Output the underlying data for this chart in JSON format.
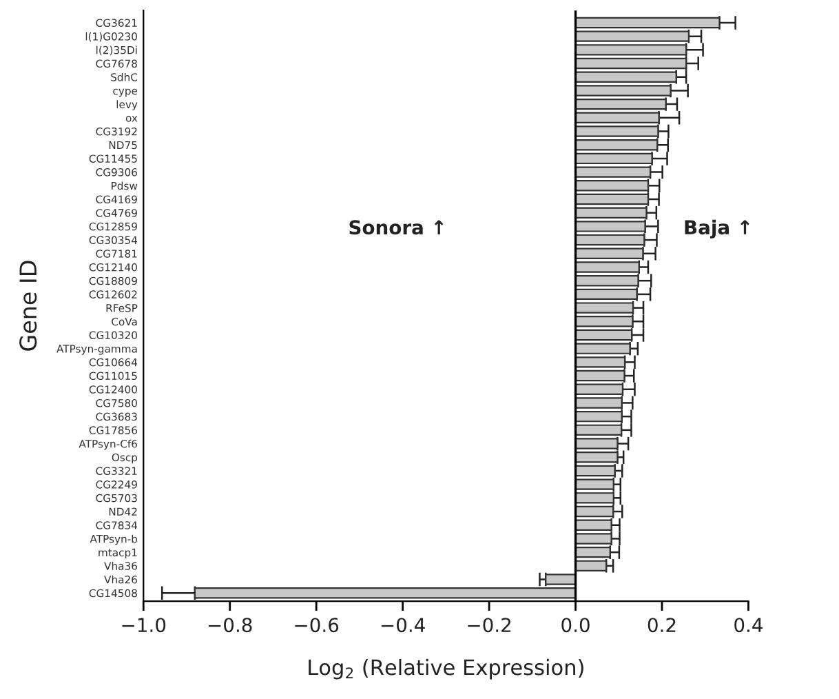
{
  "chart_data": {
    "type": "bar",
    "orientation": "horizontal",
    "xlabel": "Log$_{2}$ (Relative Expression)",
    "ylabel": "Gene ID",
    "categories": [
      "CG3621",
      "l(1)G0230",
      "l(2)35Di",
      "CG7678",
      "SdhC",
      "cype",
      "levy",
      "ox",
      "CG3192",
      "ND75",
      "CG11455",
      "CG9306",
      "Pdsw",
      "CG4169",
      "CG4769",
      "CG12859",
      "CG30354",
      "CG7181",
      "CG12140",
      "CG18809",
      "CG12602",
      "RFeSP",
      "CoVa",
      "CG10320",
      "ATPsyn-gamma",
      "CG10664",
      "CG11015",
      "CG12400",
      "CG7580",
      "CG3683",
      "CG17856",
      "ATPsyn-Cf6",
      "Oscp",
      "CG3321",
      "CG2249",
      "CG5703",
      "ND42",
      "CG7834",
      "ATPsyn-b",
      "mtacp1",
      "Vha36",
      "Vha26",
      "CG14508"
    ],
    "values": [
      0.333,
      0.262,
      0.256,
      0.256,
      0.233,
      0.22,
      0.209,
      0.193,
      0.191,
      0.189,
      0.177,
      0.173,
      0.168,
      0.168,
      0.164,
      0.161,
      0.159,
      0.156,
      0.147,
      0.145,
      0.142,
      0.133,
      0.132,
      0.13,
      0.126,
      0.114,
      0.113,
      0.109,
      0.107,
      0.107,
      0.106,
      0.097,
      0.097,
      0.091,
      0.088,
      0.088,
      0.087,
      0.083,
      0.083,
      0.08,
      0.071,
      -0.069,
      -0.881
    ],
    "errors": [
      [
        0.333,
        0.37
      ],
      [
        0.262,
        0.291
      ],
      [
        0.256,
        0.295
      ],
      [
        0.256,
        0.284
      ],
      [
        0.233,
        0.256
      ],
      [
        0.22,
        0.26
      ],
      [
        0.209,
        0.235
      ],
      [
        0.193,
        0.24
      ],
      [
        0.191,
        0.215
      ],
      [
        0.189,
        0.214
      ],
      [
        0.177,
        0.212
      ],
      [
        0.173,
        0.201
      ],
      [
        0.168,
        0.194
      ],
      [
        0.168,
        0.193
      ],
      [
        0.164,
        0.187
      ],
      [
        0.161,
        0.191
      ],
      [
        0.159,
        0.188
      ],
      [
        0.156,
        0.185
      ],
      [
        0.147,
        0.168
      ],
      [
        0.145,
        0.175
      ],
      [
        0.142,
        0.173
      ],
      [
        0.133,
        0.157
      ],
      [
        0.132,
        0.157
      ],
      [
        0.13,
        0.157
      ],
      [
        0.126,
        0.144
      ],
      [
        0.114,
        0.137
      ],
      [
        0.113,
        0.135
      ],
      [
        0.109,
        0.137
      ],
      [
        0.107,
        0.132
      ],
      [
        0.107,
        0.129
      ],
      [
        0.106,
        0.129
      ],
      [
        0.097,
        0.122
      ],
      [
        0.097,
        0.111
      ],
      [
        0.091,
        0.108
      ],
      [
        0.088,
        0.104
      ],
      [
        0.088,
        0.104
      ],
      [
        0.087,
        0.108
      ],
      [
        0.083,
        0.102
      ],
      [
        0.083,
        0.102
      ],
      [
        0.08,
        0.101
      ],
      [
        0.071,
        0.087
      ],
      [
        -0.083,
        -0.069
      ],
      [
        -0.957,
        -0.881
      ]
    ],
    "color": "#c8c8c8",
    "xlim": [
      -1.0,
      0.4
    ],
    "xticks": [
      {
        "value": -1.0,
        "label": "−1.0"
      },
      {
        "value": -0.8,
        "label": "−0.8"
      },
      {
        "value": -0.6,
        "label": "−0.6"
      },
      {
        "value": -0.4,
        "label": "−0.4"
      },
      {
        "value": -0.2,
        "label": "−0.2"
      },
      {
        "value": 0.0,
        "label": "0.0"
      },
      {
        "value": 0.2,
        "label": "0.2"
      },
      {
        "value": 0.4,
        "label": "0.4"
      }
    ],
    "ref_lines": [
      {
        "axis": "x",
        "value": 0.0,
        "color": "#000000"
      }
    ],
    "annotations": [
      "Sonora ↑",
      "Baja ↑"
    ],
    "grid": false,
    "legend": false
  }
}
